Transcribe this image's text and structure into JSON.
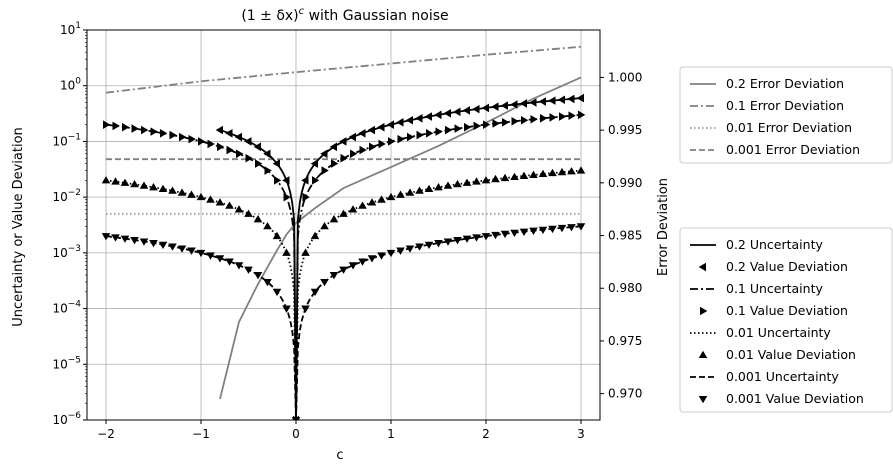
{
  "chart_data": {
    "type": "line",
    "title": "(1 ± δx)",
    "title_sup": "c",
    "title_suffix": " with Gaussian noise",
    "xlabel": "c",
    "ylabel_left": "Uncertainty or Value Deviation",
    "ylabel_right": "Error Deviation",
    "xlim": [
      -2.2,
      3.2
    ],
    "ylim_left": [
      1e-06,
      10
    ],
    "ylim_right": [
      0.9675,
      1.0045
    ],
    "yscale_left": "log",
    "grid": true,
    "x_ticks": [
      -2,
      -1,
      0,
      1,
      2,
      3
    ],
    "x_tick_labels": [
      "−2",
      "−1",
      "0",
      "1",
      "2",
      "3"
    ],
    "left_ticks": [
      1e-06,
      1e-05,
      0.0001,
      0.001,
      0.01,
      0.1,
      1,
      10
    ],
    "left_tick_labels": [
      {
        "base": "10",
        "exp": "−6"
      },
      {
        "base": "10",
        "exp": "−5"
      },
      {
        "base": "10",
        "exp": "−4"
      },
      {
        "base": "10",
        "exp": "−3"
      },
      {
        "base": "10",
        "exp": "−2"
      },
      {
        "base": "10",
        "exp": "−1"
      },
      {
        "base": "10",
        "exp": "0"
      },
      {
        "base": "10",
        "exp": "1"
      }
    ],
    "right_ticks": [
      0.97,
      0.975,
      0.98,
      0.985,
      0.99,
      0.995,
      1.0
    ],
    "right_tick_labels": [
      "0.970",
      "0.975",
      "0.980",
      "0.985",
      "0.990",
      "0.995",
      "1.000"
    ],
    "x_values": [
      -2,
      -1.9,
      -1.8,
      -1.7,
      -1.6,
      -1.5,
      -1.4,
      -1.3,
      -1.2,
      -1.1,
      -1.0,
      -0.9,
      -0.8,
      -0.7,
      -0.6,
      -0.5,
      -0.4,
      -0.3,
      -0.2,
      -0.1,
      0,
      0.1,
      0.2,
      0.3,
      0.4,
      0.5,
      0.6,
      0.7,
      0.8,
      0.9,
      1.0,
      1.1,
      1.2,
      1.3,
      1.4,
      1.5,
      1.6,
      1.7,
      1.8,
      1.9,
      2.0,
      2.1,
      2.2,
      2.3,
      2.4,
      2.5,
      2.6,
      2.7,
      2.8,
      2.9,
      3.0
    ],
    "error_deviation_series": [
      {
        "name": "0.2 Error Deviation",
        "axis": "right",
        "style": "solid",
        "color": "#808080",
        "x": [
          -0.8,
          -0.6,
          -0.4,
          -0.2,
          -0.1,
          0,
          0.2,
          0.5,
          1.0,
          1.5,
          2.0,
          2.5,
          3.0
        ],
        "y": [
          0.9695,
          0.9768,
          0.9804,
          0.9836,
          0.9851,
          0.9862,
          0.9876,
          0.9895,
          0.9915,
          0.9935,
          0.9957,
          0.998,
          1.0
        ]
      },
      {
        "name": "0.1 Error Deviation",
        "axis": "left",
        "style": "dashdot",
        "color": "#808080",
        "x": [
          -2,
          -1,
          0,
          1,
          2,
          3
        ],
        "y": [
          0.75,
          1.2,
          1.75,
          2.5,
          3.6,
          5.0
        ]
      },
      {
        "name": "0.01 Error Deviation",
        "axis": "left",
        "style": "dotted",
        "color": "#999999",
        "x": [
          -2,
          3
        ],
        "y": [
          0.005,
          0.005
        ]
      },
      {
        "name": "0.001 Error Deviation",
        "axis": "left",
        "style": "dashed",
        "color": "#808080",
        "x": [
          -2,
          3
        ],
        "y": [
          0.048,
          0.048
        ]
      }
    ],
    "uncertainty_series": [
      {
        "name": "0.2 Uncertainty",
        "noise": 0.2,
        "style": "solid",
        "x_min": -0.8,
        "marker_name": "0.2 Value Deviation",
        "marker": "triangle-left",
        "marker_x_min": -0.8
      },
      {
        "name": "0.1 Uncertainty",
        "noise": 0.1,
        "style": "dashdot",
        "x_min": -2,
        "marker_name": "0.1 Value Deviation",
        "marker": "triangle-right",
        "marker_x_min": -2
      },
      {
        "name": "0.01 Uncertainty",
        "noise": 0.01,
        "style": "dotted",
        "x_min": -2,
        "marker_name": "0.01 Value Deviation",
        "marker": "triangle-up",
        "marker_x_min": -2
      },
      {
        "name": "0.001 Uncertainty",
        "noise": 0.001,
        "style": "dashed",
        "x_min": -2,
        "marker_name": "0.001 Value Deviation",
        "marker": "triangle-down",
        "marker_x_min": -2
      }
    ],
    "legend_top": {
      "placement": "right-top",
      "entries": [
        {
          "label": "0.2 Error Deviation",
          "style": "solid",
          "color": "#808080"
        },
        {
          "label": "0.1 Error Deviation",
          "style": "dashdot",
          "color": "#808080"
        },
        {
          "label": "0.01 Error Deviation",
          "style": "dotted",
          "color": "#999999"
        },
        {
          "label": "0.001 Error Deviation",
          "style": "dashed",
          "color": "#808080"
        }
      ]
    },
    "legend_bottom": {
      "placement": "right-bottom",
      "entries": [
        {
          "label": "0.2 Uncertainty",
          "style": "solid",
          "marker": ""
        },
        {
          "label": "0.2 Value Deviation",
          "style": "",
          "marker": "triangle-left"
        },
        {
          "label": "0.1 Uncertainty",
          "style": "dashdot",
          "marker": ""
        },
        {
          "label": "0.1 Value Deviation",
          "style": "",
          "marker": "triangle-right"
        },
        {
          "label": "0.01 Uncertainty",
          "style": "dotted",
          "marker": ""
        },
        {
          "label": "0.01 Value Deviation",
          "style": "",
          "marker": "triangle-up"
        },
        {
          "label": "0.001 Uncertainty",
          "style": "dashed",
          "marker": ""
        },
        {
          "label": "0.001 Value Deviation",
          "style": "",
          "marker": "triangle-down"
        }
      ]
    }
  }
}
